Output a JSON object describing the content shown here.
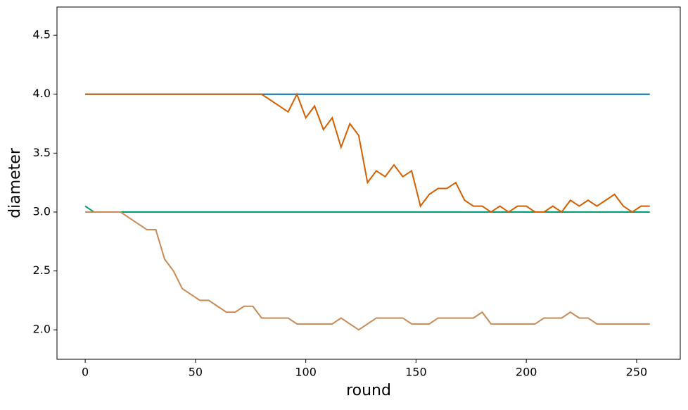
{
  "chart_data": {
    "type": "line",
    "x_label": "round",
    "y_label": "diameter",
    "x": [
      0,
      4,
      8,
      12,
      16,
      20,
      24,
      28,
      32,
      36,
      40,
      44,
      48,
      52,
      56,
      60,
      64,
      68,
      72,
      76,
      80,
      84,
      88,
      92,
      96,
      100,
      104,
      108,
      112,
      116,
      120,
      124,
      128,
      132,
      136,
      140,
      144,
      148,
      152,
      156,
      160,
      164,
      168,
      172,
      176,
      180,
      184,
      188,
      192,
      196,
      200,
      204,
      208,
      212,
      216,
      220,
      224,
      228,
      232,
      236,
      240,
      244,
      248,
      252,
      256
    ],
    "series": [
      {
        "color": "#0072b2",
        "values": [
          4,
          4,
          4,
          4,
          4,
          4,
          4,
          4,
          4,
          4,
          4,
          4,
          4,
          4,
          4,
          4,
          4,
          4,
          4,
          4,
          4,
          4,
          4,
          4,
          4,
          4,
          4,
          4,
          4,
          4,
          4,
          4,
          4,
          4,
          4,
          4,
          4,
          4,
          4,
          4,
          4,
          4,
          4,
          4,
          4,
          4,
          4,
          4,
          4,
          4,
          4,
          4,
          4,
          4,
          4,
          4,
          4,
          4,
          4,
          4,
          4,
          4,
          4,
          4,
          4
        ]
      },
      {
        "color": "#009e73",
        "values": [
          3.05,
          3,
          3,
          3,
          3,
          3,
          3,
          3,
          3,
          3,
          3,
          3,
          3,
          3,
          3,
          3,
          3,
          3,
          3,
          3,
          3,
          3,
          3,
          3,
          3,
          3,
          3,
          3,
          3,
          3,
          3,
          3,
          3,
          3,
          3,
          3,
          3,
          3,
          3,
          3,
          3,
          3,
          3,
          3,
          3,
          3,
          3,
          3,
          3,
          3,
          3,
          3,
          3,
          3,
          3,
          3,
          3,
          3,
          3,
          3,
          3,
          3,
          3,
          3,
          3
        ]
      },
      {
        "color": "#d55e00",
        "values": [
          4,
          4,
          4,
          4,
          4,
          4,
          4,
          4,
          4,
          4,
          4,
          4,
          4,
          4,
          4,
          4,
          4,
          4,
          4,
          4,
          4,
          3.95,
          3.9,
          3.85,
          4,
          3.8,
          3.9,
          3.7,
          3.8,
          3.55,
          3.75,
          3.65,
          3.25,
          3.35,
          3.3,
          3.4,
          3.3,
          3.35,
          3.05,
          3.15,
          3.2,
          3.2,
          3.25,
          3.1,
          3.05,
          3.05,
          3,
          3.05,
          3,
          3.05,
          3.05,
          3,
          3,
          3.05,
          3,
          3.1,
          3.05,
          3.1,
          3.05,
          3.1,
          3.15,
          3.05,
          3,
          3.05,
          3.05
        ]
      },
      {
        "color": "#c98a55",
        "values": [
          3,
          3,
          3,
          3,
          3,
          2.95,
          2.9,
          2.85,
          2.85,
          2.6,
          2.5,
          2.35,
          2.3,
          2.25,
          2.25,
          2.2,
          2.15,
          2.15,
          2.2,
          2.2,
          2.1,
          2.1,
          2.1,
          2.1,
          2.05,
          2.05,
          2.05,
          2.05,
          2.05,
          2.1,
          2.05,
          2,
          2.05,
          2.1,
          2.1,
          2.1,
          2.1,
          2.05,
          2.05,
          2.05,
          2.1,
          2.1,
          2.1,
          2.1,
          2.1,
          2.15,
          2.05,
          2.05,
          2.05,
          2.05,
          2.05,
          2.05,
          2.1,
          2.1,
          2.1,
          2.15,
          2.1,
          2.1,
          2.05,
          2.05,
          2.05,
          2.05,
          2.05,
          2.05,
          2.05
        ]
      }
    ],
    "xlim": [
      -12.8,
      269.8
    ],
    "ylim": [
      1.75,
      4.74
    ],
    "xticks": [
      0,
      50,
      100,
      150,
      200,
      250
    ],
    "yticks": [
      {
        "value": 2,
        "label": "2.0"
      },
      2.5,
      {
        "value": 3,
        "label": "3.0"
      },
      3.5,
      {
        "value": 4,
        "label": "4.0"
      },
      4.5
    ],
    "grid": false
  }
}
